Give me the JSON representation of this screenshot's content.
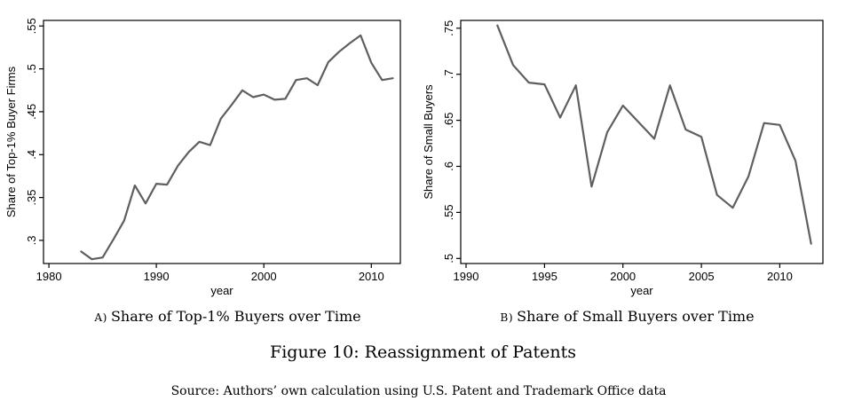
{
  "figure": {
    "title": "Figure 10: Reassignment of Patents",
    "source": "Source: Authors’ own calculation using U.S. Patent and Trademark Office data"
  },
  "panels": [
    {
      "marker": "A)",
      "text": "Share of Top-1% Buyers over Time"
    },
    {
      "marker": "B)",
      "text": "Share of Small Buyers over Time"
    }
  ],
  "colors": {
    "line": "#5f5f5f",
    "axis": "#000000",
    "background": "#ffffff"
  },
  "chart_data": [
    {
      "type": "line",
      "title": "",
      "xlabel": "year",
      "ylabel": "Share of Top-1% Buyer Firms",
      "x": [
        1983,
        1984,
        1985,
        1986,
        1987,
        1988,
        1989,
        1990,
        1991,
        1992,
        1993,
        1994,
        1995,
        1996,
        1997,
        1998,
        1999,
        2000,
        2001,
        2002,
        2003,
        2004,
        2005,
        2006,
        2007,
        2008,
        2009,
        2010,
        2011,
        2012
      ],
      "values": [
        0.287,
        0.278,
        0.28,
        0.301,
        0.323,
        0.364,
        0.343,
        0.366,
        0.365,
        0.387,
        0.403,
        0.415,
        0.411,
        0.442,
        0.458,
        0.475,
        0.467,
        0.47,
        0.464,
        0.465,
        0.487,
        0.489,
        0.481,
        0.508,
        0.52,
        0.53,
        0.539,
        0.507,
        0.487,
        0.489
      ],
      "xticks": [
        1980,
        1990,
        2000,
        2010
      ],
      "xtick_labels": [
        "1980",
        "1990",
        "2000",
        "2010"
      ],
      "yticks": [
        0.3,
        0.35,
        0.4,
        0.45,
        0.5,
        0.55
      ],
      "ytick_labels": [
        ".3",
        ".35",
        ".4",
        ".45",
        ".5",
        ".55"
      ],
      "xlim": [
        1979.5,
        2012.7
      ],
      "ylim": [
        0.273,
        0.5565
      ],
      "grid": false,
      "legend": "none",
      "line_color": "#5f5f5f"
    },
    {
      "type": "line",
      "title": "",
      "xlabel": "year",
      "ylabel": "Share of Small Buyers",
      "x": [
        1992,
        1993,
        1994,
        1995,
        1996,
        1997,
        1998,
        1999,
        2000,
        2001,
        2002,
        2003,
        2004,
        2005,
        2006,
        2007,
        2008,
        2009,
        2010,
        2011,
        2012
      ],
      "values": [
        0.753,
        0.71,
        0.691,
        0.689,
        0.653,
        0.688,
        0.578,
        0.637,
        0.666,
        0.648,
        0.63,
        0.688,
        0.64,
        0.632,
        0.569,
        0.555,
        0.589,
        0.647,
        0.645,
        0.606,
        0.516
      ],
      "xticks": [
        1990,
        1995,
        2000,
        2005,
        2010
      ],
      "xtick_labels": [
        "1990",
        "1995",
        "2000",
        "2005",
        "2010"
      ],
      "yticks": [
        0.5,
        0.55,
        0.6,
        0.65,
        0.7,
        0.75
      ],
      "ytick_labels": [
        ".5",
        ".55",
        ".6",
        ".65",
        ".7",
        ".75"
      ],
      "xlim": [
        1989.66,
        2012.75
      ],
      "ylim": [
        0.4945,
        0.7585
      ],
      "grid": false,
      "legend": "none",
      "line_color": "#5f5f5f"
    }
  ]
}
